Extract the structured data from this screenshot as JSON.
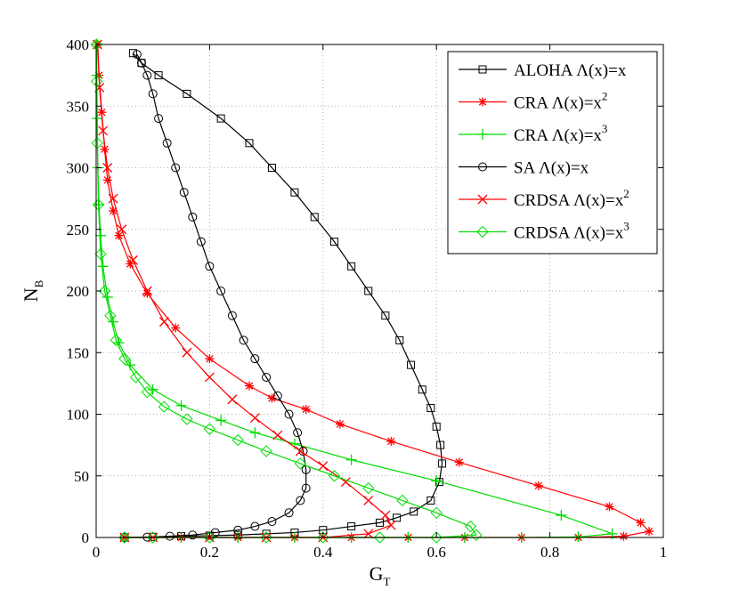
{
  "chart_data": {
    "type": "line",
    "title": "",
    "xlabel": "G",
    "xlabel_sub": "T",
    "ylabel": "N",
    "ylabel_sub": "B",
    "xlim": [
      0,
      1
    ],
    "ylim": [
      0,
      400
    ],
    "xticks": [
      0,
      0.2,
      0.4,
      0.6,
      0.8,
      1
    ],
    "xtick_labels": [
      "0",
      "0.2",
      "0.4",
      "0.6",
      "0.8",
      "1"
    ],
    "yticks": [
      0,
      50,
      100,
      150,
      200,
      250,
      300,
      350,
      400
    ],
    "ytick_labels": [
      "0",
      "50",
      "100",
      "150",
      "200",
      "250",
      "300",
      "350",
      "400"
    ],
    "grid": true,
    "legend_position": "top-right",
    "series": [
      {
        "name": "ALOHA Λ(x)=x",
        "label_main": "ALOHA Λ(x)=x",
        "label_sup": "",
        "color": "#000000",
        "marker": "square",
        "points": [
          [
            0.05,
            0
          ],
          [
            0.1,
            0.5
          ],
          [
            0.15,
            1
          ],
          [
            0.2,
            1.5
          ],
          [
            0.25,
            2
          ],
          [
            0.3,
            3
          ],
          [
            0.35,
            4
          ],
          [
            0.4,
            6
          ],
          [
            0.45,
            9
          ],
          [
            0.5,
            12
          ],
          [
            0.53,
            16
          ],
          [
            0.56,
            21
          ],
          [
            0.59,
            30
          ],
          [
            0.605,
            45
          ],
          [
            0.61,
            60
          ],
          [
            0.607,
            75
          ],
          [
            0.6,
            90
          ],
          [
            0.59,
            105
          ],
          [
            0.575,
            120
          ],
          [
            0.555,
            140
          ],
          [
            0.535,
            160
          ],
          [
            0.51,
            180
          ],
          [
            0.48,
            200
          ],
          [
            0.45,
            220
          ],
          [
            0.42,
            240
          ],
          [
            0.385,
            260
          ],
          [
            0.35,
            280
          ],
          [
            0.31,
            300
          ],
          [
            0.27,
            320
          ],
          [
            0.22,
            340
          ],
          [
            0.16,
            360
          ],
          [
            0.11,
            375
          ],
          [
            0.08,
            385
          ],
          [
            0.065,
            393
          ]
        ]
      },
      {
        "name": "CRA Λ(x)=x^2",
        "label_main": "CRA Λ(x)=x",
        "label_sup": "2",
        "color": "#ff0000",
        "marker": "star",
        "points": [
          [
            0.05,
            0
          ],
          [
            0.15,
            0
          ],
          [
            0.25,
            0
          ],
          [
            0.35,
            0
          ],
          [
            0.45,
            0
          ],
          [
            0.55,
            0
          ],
          [
            0.65,
            0
          ],
          [
            0.75,
            0
          ],
          [
            0.85,
            0
          ],
          [
            0.93,
            1
          ],
          [
            0.975,
            5
          ],
          [
            0.96,
            12
          ],
          [
            0.905,
            25
          ],
          [
            0.78,
            42
          ],
          [
            0.64,
            61
          ],
          [
            0.52,
            78
          ],
          [
            0.43,
            92
          ],
          [
            0.37,
            104
          ],
          [
            0.31,
            113
          ],
          [
            0.27,
            123
          ],
          [
            0.2,
            145
          ],
          [
            0.14,
            170
          ],
          [
            0.09,
            198
          ],
          [
            0.06,
            222
          ],
          [
            0.04,
            245
          ],
          [
            0.03,
            265
          ],
          [
            0.02,
            290
          ],
          [
            0.015,
            315
          ],
          [
            0.01,
            345
          ],
          [
            0.005,
            375
          ],
          [
            0.003,
            400
          ]
        ]
      },
      {
        "name": "CRA Λ(x)=x^3",
        "label_main": "CRA Λ(x)=x",
        "label_sup": "3",
        "color": "#00dd00",
        "marker": "plus",
        "points": [
          [
            0.05,
            0
          ],
          [
            0.15,
            0
          ],
          [
            0.25,
            0
          ],
          [
            0.35,
            0
          ],
          [
            0.45,
            0
          ],
          [
            0.55,
            0
          ],
          [
            0.65,
            0
          ],
          [
            0.75,
            0
          ],
          [
            0.85,
            0.5
          ],
          [
            0.91,
            3
          ],
          [
            0.82,
            18
          ],
          [
            0.6,
            46
          ],
          [
            0.45,
            63
          ],
          [
            0.35,
            76
          ],
          [
            0.28,
            85
          ],
          [
            0.22,
            95
          ],
          [
            0.15,
            107
          ],
          [
            0.1,
            120
          ],
          [
            0.06,
            140
          ],
          [
            0.04,
            158
          ],
          [
            0.03,
            175
          ],
          [
            0.02,
            195
          ],
          [
            0.012,
            220
          ],
          [
            0.008,
            245
          ],
          [
            0.005,
            270
          ],
          [
            0.003,
            300
          ],
          [
            0.002,
            340
          ],
          [
            0.001,
            375
          ],
          [
            0.0005,
            400
          ]
        ]
      },
      {
        "name": "SA Λ(x)=x",
        "label_main": "SA Λ(x)=x",
        "label_sup": "",
        "color": "#000000",
        "marker": "circle",
        "points": [
          [
            0.05,
            0
          ],
          [
            0.09,
            0.3
          ],
          [
            0.13,
            1
          ],
          [
            0.17,
            2
          ],
          [
            0.21,
            4
          ],
          [
            0.25,
            6
          ],
          [
            0.28,
            9
          ],
          [
            0.31,
            13
          ],
          [
            0.34,
            20
          ],
          [
            0.36,
            30
          ],
          [
            0.37,
            40
          ],
          [
            0.37,
            55
          ],
          [
            0.365,
            70
          ],
          [
            0.355,
            85
          ],
          [
            0.34,
            100
          ],
          [
            0.32,
            115
          ],
          [
            0.3,
            130
          ],
          [
            0.28,
            145
          ],
          [
            0.26,
            160
          ],
          [
            0.24,
            180
          ],
          [
            0.22,
            200
          ],
          [
            0.2,
            220
          ],
          [
            0.185,
            240
          ],
          [
            0.17,
            260
          ],
          [
            0.155,
            280
          ],
          [
            0.14,
            300
          ],
          [
            0.125,
            320
          ],
          [
            0.11,
            340
          ],
          [
            0.1,
            360
          ],
          [
            0.09,
            375
          ],
          [
            0.08,
            385
          ],
          [
            0.072,
            392
          ]
        ]
      },
      {
        "name": "CRDSA Λ(x)=x^2",
        "label_main": "CRDSA Λ(x)=x",
        "label_sup": "2",
        "color": "#ff0000",
        "marker": "x",
        "points": [
          [
            0.05,
            0
          ],
          [
            0.1,
            0
          ],
          [
            0.2,
            0
          ],
          [
            0.3,
            0
          ],
          [
            0.4,
            0
          ],
          [
            0.48,
            3
          ],
          [
            0.52,
            10
          ],
          [
            0.51,
            18
          ],
          [
            0.48,
            30
          ],
          [
            0.44,
            45
          ],
          [
            0.4,
            58
          ],
          [
            0.36,
            70
          ],
          [
            0.32,
            83
          ],
          [
            0.28,
            97
          ],
          [
            0.24,
            112
          ],
          [
            0.2,
            130
          ],
          [
            0.16,
            150
          ],
          [
            0.12,
            175
          ],
          [
            0.09,
            200
          ],
          [
            0.065,
            225
          ],
          [
            0.045,
            250
          ],
          [
            0.03,
            275
          ],
          [
            0.02,
            300
          ],
          [
            0.012,
            330
          ],
          [
            0.006,
            365
          ],
          [
            0.002,
            400
          ]
        ]
      },
      {
        "name": "CRDSA Λ(x)=x^3",
        "label_main": "CRDSA Λ(x)=x",
        "label_sup": "3",
        "color": "#00dd00",
        "marker": "diamond",
        "points": [
          [
            0.05,
            0
          ],
          [
            0.1,
            0
          ],
          [
            0.2,
            0
          ],
          [
            0.3,
            0
          ],
          [
            0.4,
            0
          ],
          [
            0.5,
            0
          ],
          [
            0.6,
            0
          ],
          [
            0.67,
            2
          ],
          [
            0.66,
            9
          ],
          [
            0.6,
            20
          ],
          [
            0.54,
            30
          ],
          [
            0.48,
            40
          ],
          [
            0.42,
            50
          ],
          [
            0.36,
            60
          ],
          [
            0.3,
            70
          ],
          [
            0.25,
            79
          ],
          [
            0.2,
            88
          ],
          [
            0.16,
            96
          ],
          [
            0.12,
            106
          ],
          [
            0.09,
            118
          ],
          [
            0.07,
            130
          ],
          [
            0.05,
            145
          ],
          [
            0.035,
            160
          ],
          [
            0.025,
            180
          ],
          [
            0.015,
            200
          ],
          [
            0.008,
            230
          ],
          [
            0.004,
            270
          ],
          [
            0.002,
            320
          ],
          [
            0.001,
            370
          ],
          [
            0.0005,
            400
          ]
        ]
      }
    ]
  }
}
